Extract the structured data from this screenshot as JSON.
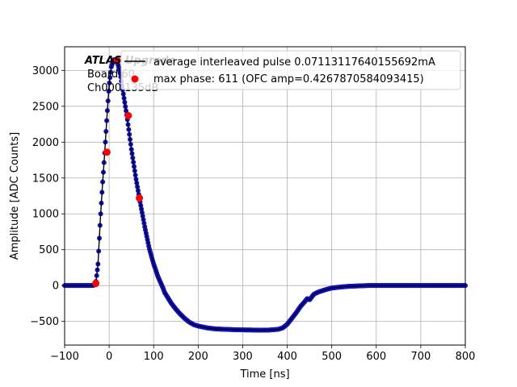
{
  "chart_data": {
    "type": "scatter",
    "xlabel": "Time [ns]",
    "ylabel": "Amplitude [ADC Counts]",
    "xlim": [
      -100,
      800
    ],
    "ylim": [
      -830,
      3330
    ],
    "xticks": [
      "−100",
      "0",
      "100",
      "200",
      "300",
      "400",
      "500",
      "600",
      "700",
      "800"
    ],
    "xtick_values": [
      -100,
      0,
      100,
      200,
      300,
      400,
      500,
      600,
      700,
      800
    ],
    "yticks": [
      "−500",
      "0",
      "500",
      "1000",
      "1500",
      "2000",
      "2500",
      "3000"
    ],
    "ytick_values": [
      -500,
      0,
      500,
      1000,
      1500,
      2000,
      2500,
      3000
    ],
    "grid": true,
    "legend_position": "top-right",
    "annotation": {
      "line1": "ATLAS Upgrade",
      "line2": "Board 60",
      "line3": "Ch000 135dB"
    },
    "series": [
      {
        "name": "average interleaved pulse 0.07113117640155692mA",
        "kind": "line+markers",
        "line_color": "#000000",
        "marker_color": "#1010c8",
        "x": [
          -100,
          -80,
          -60,
          -40,
          -34,
          -30,
          -25,
          -20,
          -15,
          -10,
          -5,
          0,
          5,
          10,
          15,
          20,
          25,
          30,
          40,
          50,
          60,
          70,
          80,
          90,
          100,
          110,
          120,
          125,
          130,
          135,
          140,
          150,
          160,
          170,
          180,
          190,
          200,
          220,
          240,
          260,
          280,
          300,
          320,
          340,
          360,
          380,
          390,
          400,
          410,
          420,
          430,
          440,
          445,
          450,
          455,
          460,
          470,
          480,
          490,
          500,
          520,
          540,
          560,
          580,
          600,
          620,
          650,
          700,
          750,
          800
        ],
        "y": [
          0,
          0,
          0,
          0,
          5,
          30,
          300,
          900,
          1400,
          1850,
          2350,
          2800,
          3050,
          3150,
          3150,
          3080,
          2950,
          2750,
          2360,
          1900,
          1500,
          1150,
          820,
          520,
          300,
          120,
          -20,
          -100,
          -150,
          -200,
          -250,
          -330,
          -400,
          -460,
          -510,
          -545,
          -565,
          -590,
          -605,
          -610,
          -615,
          -618,
          -620,
          -622,
          -620,
          -610,
          -590,
          -540,
          -460,
          -380,
          -290,
          -220,
          -180,
          -200,
          -160,
          -120,
          -90,
          -70,
          -50,
          -35,
          -20,
          -10,
          -5,
          0,
          0,
          0,
          0,
          0,
          0,
          0
        ]
      },
      {
        "name": "max phase: 611 (OFC amp=0.4267870584093415)",
        "kind": "markers",
        "marker_color": "#ff0000",
        "x": [
          -30,
          -5,
          18,
          43,
          68
        ],
        "y": [
          30,
          1860,
          3140,
          2370,
          1220
        ]
      }
    ]
  }
}
